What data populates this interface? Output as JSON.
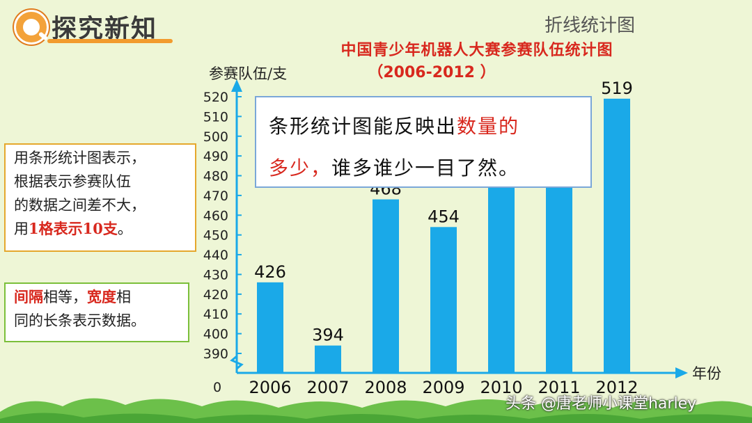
{
  "header": {
    "title": "探究新知"
  },
  "section_label": "折线统计图",
  "notes": {
    "left_top": {
      "line1": "用条形统计图表示，",
      "line2": "根据表示参赛队伍",
      "line3": "的数据之间差不大，",
      "line4_pre": "用",
      "line4_red": "1格表示10支",
      "line4_post": "。"
    },
    "left_bottom": {
      "line1_red1": "间隔",
      "line1_mid": "相等，",
      "line1_red2": "宽度",
      "line1_post": "相",
      "line2": "同的长条表示数据。"
    }
  },
  "callout": {
    "line1_pre": "条形统计图能反映出",
    "line1_red": "数量的",
    "line2_red": "多少，",
    "line2_post": "谁多谁少一目了然。"
  },
  "watermark": "头条 @唐老师小课堂harley",
  "colors": {
    "bar": "#1aa9e8",
    "axis": "#1aa9e8",
    "title": "#d8281e",
    "note_border": "#e5a72c",
    "note_border_green": "#7bbf3a"
  },
  "chart_data": {
    "type": "bar",
    "title": "中国青少年机器人大赛参赛队伍统计图",
    "subtitle": "（2006-2012 ）",
    "ylabel": "参赛队伍/支",
    "xlabel": "年份",
    "categories": [
      "2006",
      "2007",
      "2008",
      "2009",
      "2010",
      "2011",
      "2012"
    ],
    "values": [
      426,
      394,
      468,
      454,
      480,
      480,
      519
    ],
    "data_labels": [
      "426",
      "394",
      "468",
      "454",
      "",
      "",
      "519"
    ],
    "yticks": [
      390,
      400,
      410,
      420,
      430,
      440,
      450,
      460,
      470,
      480,
      490,
      500,
      510,
      520
    ],
    "origin_label": "0",
    "ylim": [
      385,
      525
    ],
    "axis_break": true,
    "grid": false
  }
}
